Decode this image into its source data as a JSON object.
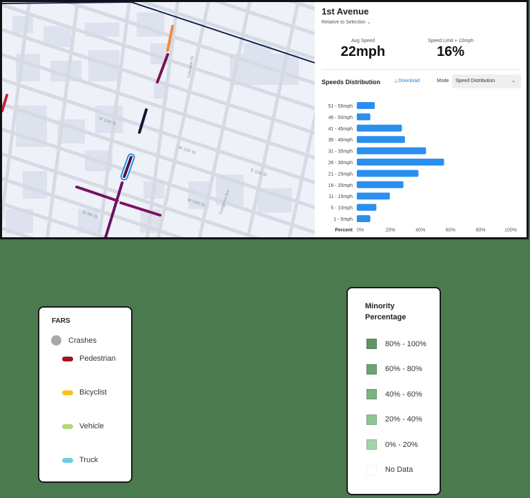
{
  "map": {
    "street_labels": [
      "W 11th St",
      "W 11th St",
      "E 11th St",
      "W 10th St",
      "W 9th St",
      "Colorado St",
      "Congress Ave"
    ],
    "segment_colors": {
      "orange": "#f28a3c",
      "purple": "#7a1260",
      "dark": "#1b1236",
      "selected_outline": "#1e8ee0",
      "boundary": "#142550",
      "red": "#c0283a"
    }
  },
  "panel": {
    "title": "1st Avenue",
    "relative": "Relative to Selection",
    "avg_speed_label": "Avg Speed",
    "avg_speed_value": "22mph",
    "limit_label": "Speed Limit + 10mph",
    "limit_value": "16%",
    "dist_title": "Speeds Distribution",
    "download": "Download",
    "mode_label": "Mode",
    "mode_value": "Speed Distribution"
  },
  "chart_data": {
    "type": "bar",
    "orientation": "horizontal",
    "categories": [
      "51 - 55mph",
      "46 - 50mph",
      "41 - 45mph",
      "36 - 40mph",
      "31 - 35mph",
      "26 - 30mph",
      "21 - 25mph",
      "16 - 20mph",
      "11 - 15mph",
      "5 - 10mph",
      "1 - 5mph"
    ],
    "values": [
      12,
      9,
      30,
      32,
      46,
      58,
      41,
      31,
      22,
      13,
      9
    ],
    "xlabel": "Percent",
    "xticks": [
      "0%",
      "20%",
      "40%",
      "60%",
      "80%",
      "100%"
    ],
    "xlim": [
      0,
      100
    ],
    "bar_color": "#2b8ff0"
  },
  "fars": {
    "title": "FARS",
    "crashes": "Crashes",
    "items": [
      {
        "label": "Pedestrian",
        "color": "#a3141c"
      },
      {
        "label": "Bicyclist",
        "color": "#f6c21a"
      },
      {
        "label": "Vehicle",
        "color": "#b4d97a"
      },
      {
        "label": "Truck",
        "color": "#6ccfe0"
      }
    ]
  },
  "minority": {
    "title_line1": "Minority",
    "title_line2": "Percentage",
    "items": [
      {
        "label": "80% - 100%",
        "color": "#5e9466"
      },
      {
        "label": "60% - 80%",
        "color": "#6ba472"
      },
      {
        "label": "40% - 60%",
        "color": "#7bb482"
      },
      {
        "label": "20% - 40%",
        "color": "#8ec593"
      },
      {
        "label": "0% - 20%",
        "color": "#a5d3a8"
      },
      {
        "label": "No Data",
        "color": "#ffffff"
      }
    ]
  },
  "background_color": "#4b7a4f"
}
